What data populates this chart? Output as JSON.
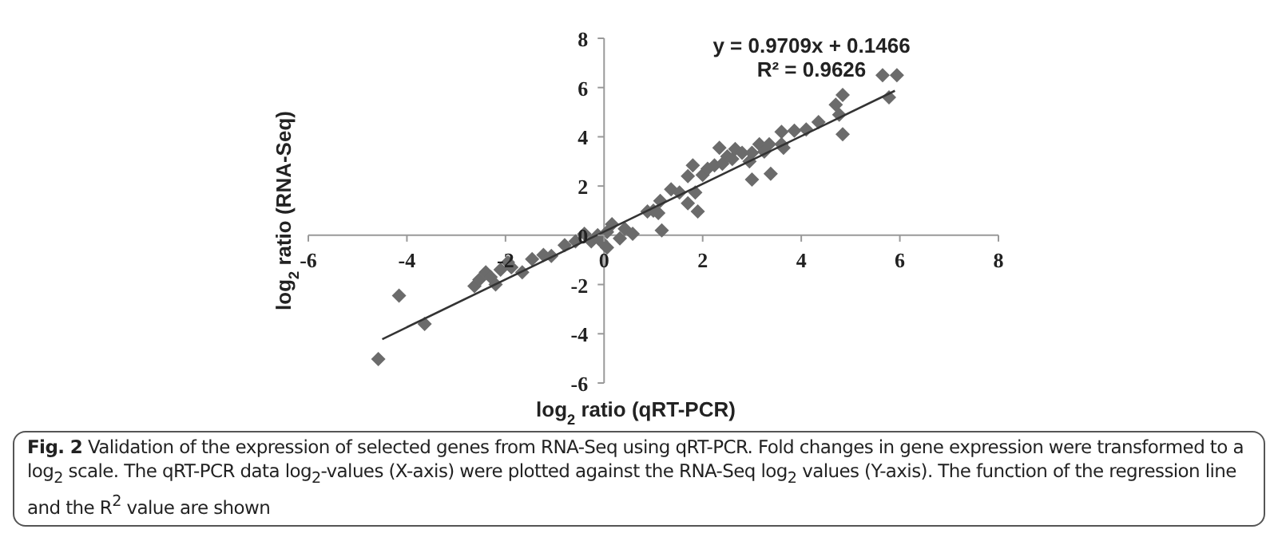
{
  "chart_data": {
    "type": "scatter",
    "xlabel": "log$_{2}$ ratio (qRT-PCR)",
    "ylabel": "log$_{2}$ ratio (RNA-Seq)",
    "xlim": [
      -6,
      8
    ],
    "xticks": [
      -6,
      -4,
      -2,
      0,
      2,
      4,
      6,
      8
    ],
    "ylim": [
      -6,
      8
    ],
    "yticks": [
      -6,
      -4,
      -2,
      0,
      2,
      4,
      6,
      8
    ],
    "grid": false,
    "legend": false,
    "marker": "diamond",
    "annotations": [
      "y = 0.9709x + 0.1466",
      "R² = 0.9626",
      "Fig. 2",
      "Validation of the expression of selected genes from RNA-Seq using qRT-PCR. Fold changes in gene expression were transformed to a log$_{2}$ scale. The qRT-PCR data log$_{2}$-values (X-axis) were plotted against the RNA-Seq log$_{2}$ values (Y-axis). The function of the regression line and the R$^{2}$ value are shown"
    ],
    "series": [
      {
        "type": "scatter",
        "color": "#6b6b6b",
        "x": [
          -4.58,
          -4.16,
          -3.64,
          -2.63,
          -2.53,
          -2.4,
          -2.3,
          -2.2,
          -2.1,
          -1.95,
          -1.88,
          -1.66,
          -1.46,
          -1.23,
          -1.07,
          -0.8,
          -0.58,
          -0.4,
          -0.26,
          -0.13,
          -0.06,
          0.06,
          0.06,
          0.16,
          0.32,
          0.42,
          0.58,
          0.88,
          1.0,
          1.1,
          1.14,
          1.17,
          1.36,
          1.53,
          1.7,
          1.7,
          1.8,
          1.85,
          1.9,
          2.0,
          2.1,
          2.24,
          2.34,
          2.4,
          2.5,
          2.6,
          2.66,
          2.8,
          2.95,
          3.0,
          3.0,
          3.15,
          3.25,
          3.35,
          3.38,
          3.6,
          3.6,
          3.64,
          3.86,
          4.1,
          4.35,
          4.7,
          4.77,
          4.84,
          4.84,
          5.65,
          5.78,
          5.94
        ],
        "values": [
          -5.03,
          -2.45,
          -3.6,
          -2.06,
          -1.8,
          -1.5,
          -1.7,
          -2.0,
          -1.4,
          -1.1,
          -1.3,
          -1.5,
          -0.97,
          -0.8,
          -0.84,
          -0.4,
          -0.25,
          0.06,
          -0.25,
          0.0,
          -0.25,
          0.13,
          -0.5,
          0.45,
          -0.13,
          0.26,
          0.06,
          0.97,
          1.0,
          0.9,
          1.4,
          0.2,
          1.87,
          1.74,
          2.4,
          1.3,
          2.84,
          1.74,
          0.97,
          2.45,
          2.7,
          2.84,
          3.55,
          2.9,
          3.2,
          3.1,
          3.5,
          3.35,
          3.0,
          3.35,
          2.26,
          3.7,
          3.4,
          3.7,
          2.5,
          4.2,
          3.7,
          3.55,
          4.25,
          4.3,
          4.6,
          5.3,
          4.9,
          5.7,
          4.1,
          6.5,
          5.6,
          6.5
        ]
      },
      {
        "type": "line",
        "marker": "none",
        "color": "#333333",
        "x": [
          -4.5,
          5.9
        ],
        "values": [
          -4.22,
          5.87
        ]
      }
    ]
  }
}
